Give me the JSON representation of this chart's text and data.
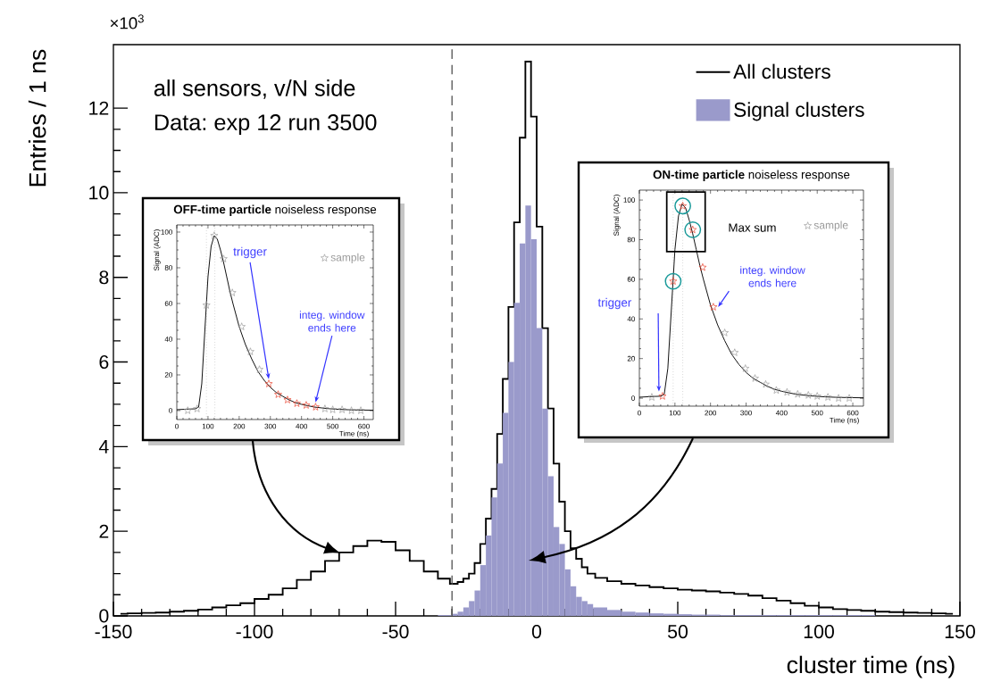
{
  "chart_data": [
    {
      "type": "histogram",
      "xlabel": "cluster time (ns)",
      "ylabel": "Entries / 1 ns",
      "xlim": [
        -150,
        150
      ],
      "ylim": [
        0,
        13.5
      ],
      "xticks": [
        -150,
        -100,
        -50,
        0,
        50,
        100,
        150
      ],
      "yticks": [
        0,
        2,
        4,
        6,
        8,
        10,
        12
      ],
      "legend": "top right",
      "annotations": [
        "×10$^{3}$",
        "all sensors, v/N side",
        "Data: exp 12 run 3500"
      ],
      "ref_lines": [
        {
          "axis": "x",
          "value": -30,
          "line_style": "dashed",
          "color": "#555555"
        }
      ],
      "bins": [
        -35,
        -30,
        -28,
        -26,
        -24,
        -22,
        -20,
        -18,
        -16,
        -14,
        -12,
        -10,
        -8,
        -6,
        -4,
        -2,
        0,
        2,
        4,
        6,
        8,
        10,
        12,
        14,
        16,
        18,
        20,
        25,
        30,
        35,
        40,
        45,
        50,
        55,
        60,
        65,
        70,
        75,
        80,
        85,
        90,
        95,
        100,
        105,
        110,
        115,
        120
      ],
      "series": [
        {
          "name": "All clusters",
          "type": "step",
          "color": "#000000",
          "x": [
            -147.5,
            -142.5,
            -137.5,
            -132.5,
            -127.5,
            -122.5,
            -117.5,
            -112.5,
            -107.5,
            -102.5,
            -97.5,
            -92.5,
            -87.5,
            -82.5,
            -77.5,
            -72.5,
            -67.5,
            -62.5,
            -57.5,
            -52.5,
            -47.5,
            -42.5,
            -37.5,
            -32.5,
            -29,
            -27,
            -25,
            -23,
            -21,
            -19,
            -17,
            -15,
            -13,
            -11,
            -9,
            -7,
            -5,
            -3,
            -1,
            1,
            3,
            5,
            7,
            9,
            11,
            13,
            15,
            17,
            19,
            22.5,
            27.5,
            32.5,
            37.5,
            42.5,
            47.5,
            52.5,
            57.5,
            62.5,
            67.5,
            72.5,
            77.5,
            82.5,
            87.5,
            92.5,
            97.5,
            102.5,
            107.5,
            112.5,
            117.5,
            122.5,
            127.5,
            132.5,
            137.5,
            142.5,
            147.5
          ],
          "values": [
            0.05,
            0.06,
            0.07,
            0.08,
            0.1,
            0.12,
            0.15,
            0.2,
            0.25,
            0.3,
            0.4,
            0.5,
            0.65,
            0.85,
            1.05,
            1.3,
            1.5,
            1.65,
            1.78,
            1.75,
            1.55,
            1.3,
            1.05,
            0.88,
            0.76,
            0.8,
            0.88,
            1.0,
            1.25,
            1.7,
            2.3,
            3.0,
            4.3,
            5.6,
            7.3,
            9.3,
            11.3,
            13.1,
            11.8,
            9.2,
            6.8,
            4.9,
            3.6,
            2.7,
            2.0,
            1.6,
            1.35,
            1.15,
            1.0,
            0.9,
            0.82,
            0.76,
            0.72,
            0.68,
            0.65,
            0.62,
            0.6,
            0.58,
            0.55,
            0.52,
            0.48,
            0.42,
            0.36,
            0.3,
            0.24,
            0.2,
            0.16,
            0.14,
            0.12,
            0.1,
            0.09,
            0.08,
            0.07,
            0.06,
            0.05
          ]
        },
        {
          "name": "Signal clusters",
          "color": "#9a9acb",
          "values": [
            0.02,
            0.05,
            0.1,
            0.2,
            0.35,
            0.6,
            1.2,
            1.9,
            2.8,
            3.6,
            4.8,
            6.0,
            7.4,
            8.8,
            9.7,
            8.9,
            6.8,
            4.9,
            3.3,
            2.1,
            1.7,
            1.1,
            0.7,
            0.45,
            0.35,
            0.28,
            0.2,
            0.14,
            0.1,
            0.08,
            0.06,
            0.05,
            0.04,
            0.03,
            0.03,
            0.02,
            0.02,
            0.02,
            0.02,
            0.02,
            0.02,
            0.02,
            0.02,
            0.02,
            0.02,
            0.02
          ]
        }
      ]
    },
    {
      "type": "line",
      "title": "**OFF-time particle** noiseless response",
      "xlabel": "Time (ns)",
      "ylabel": "Signal (ADC)",
      "xlim": [
        0,
        630
      ],
      "ylim": [
        -5,
        104
      ],
      "xticks": [
        0,
        100,
        200,
        300,
        400,
        500,
        600
      ],
      "yticks": [
        0,
        20,
        40,
        60,
        80,
        100
      ],
      "legend": "top right",
      "ref_lines": [
        {
          "axis": "x",
          "value": 95,
          "line_style": "dotted",
          "color": "#777777"
        },
        {
          "axis": "x",
          "value": 122,
          "line_style": "dotted",
          "color": "#777777"
        }
      ],
      "annotations": [
        "trigger",
        "integ. window ends here"
      ],
      "series": [
        {
          "type": "line",
          "color": "#000000",
          "x": [
            0,
            30,
            60,
            70,
            80,
            90,
            100,
            110,
            120,
            130,
            140,
            150,
            160,
            170,
            180,
            200,
            220,
            240,
            260,
            280,
            300,
            320,
            340,
            360,
            380,
            400,
            440,
            480,
            520,
            560,
            630
          ],
          "values": [
            0.5,
            0.8,
            1,
            2,
            15,
            45,
            75,
            92,
            98,
            96,
            90,
            83,
            75,
            67,
            60,
            47,
            37,
            29,
            22,
            17,
            13,
            10,
            8,
            6,
            4.5,
            3.5,
            2,
            1.2,
            0.7,
            0.4,
            0.2
          ]
        },
        {
          "name": "sample",
          "type": "scatter",
          "marker": "star",
          "color": "#999999",
          "x": [
            35,
            65,
            95,
            120,
            150,
            178,
            208,
            236,
            265,
            475,
            500,
            530,
            560,
            590
          ],
          "values": [
            0,
            1,
            59,
            98,
            85,
            66,
            47,
            33,
            23,
            1,
            0.5,
            0.5,
            0,
            0
          ]
        },
        {
          "type": "scatter",
          "marker": "star",
          "color": "#e8402a",
          "x": [
            295,
            325,
            355,
            385,
            415,
            445
          ],
          "values": [
            15,
            9,
            6,
            4,
            3,
            2
          ]
        }
      ]
    },
    {
      "type": "line",
      "title": "**ON-time particle** noiseless response",
      "xlabel": "Time (ns)",
      "ylabel": "Signal (ADC)",
      "xlim": [
        0,
        630
      ],
      "ylim": [
        -4,
        105
      ],
      "xticks": [
        0,
        100,
        200,
        300,
        400,
        500,
        600
      ],
      "yticks": [
        0,
        20,
        40,
        60,
        80,
        100
      ],
      "legend": "top right",
      "ref_lines": [
        {
          "axis": "x",
          "value": 95,
          "line_style": "dotted",
          "color": "#777777"
        },
        {
          "axis": "x",
          "value": 122,
          "line_style": "dotted",
          "color": "#777777"
        }
      ],
      "annotations": [
        "trigger",
        "integ. window ends here",
        "Max sum"
      ],
      "series": [
        {
          "type": "line",
          "color": "#000000",
          "x": [
            0,
            30,
            60,
            70,
            80,
            90,
            100,
            110,
            120,
            130,
            140,
            150,
            160,
            170,
            180,
            200,
            220,
            240,
            260,
            280,
            300,
            320,
            340,
            360,
            380,
            400,
            440,
            480,
            520,
            560,
            630
          ],
          "values": [
            0.5,
            0.8,
            1,
            2,
            15,
            45,
            75,
            92,
            98,
            96,
            90,
            83,
            75,
            67,
            60,
            47,
            37,
            29,
            22,
            17,
            13,
            10,
            8,
            6,
            4.5,
            3.5,
            2,
            1.2,
            0.7,
            0.4,
            0.2
          ]
        },
        {
          "name": "sample",
          "type": "scatter",
          "marker": "star",
          "color": "#999999",
          "x": [
            35,
            240,
            268,
            298,
            325,
            355,
            385,
            415,
            445,
            475,
            500,
            530,
            560,
            590
          ],
          "values": [
            0.5,
            33,
            23,
            15,
            10,
            7,
            4,
            3,
            2,
            1.5,
            1,
            0.5,
            0,
            0
          ]
        },
        {
          "type": "scatter",
          "marker": "circle",
          "color": "#1a9a9a",
          "x": [
            95,
            122,
            150
          ],
          "values": [
            59,
            97,
            85
          ]
        },
        {
          "type": "scatter",
          "marker": "star",
          "color": "#e8402a",
          "x": [
            65,
            95,
            122,
            150,
            178,
            208
          ],
          "values": [
            1,
            59,
            97,
            85,
            66,
            46
          ]
        }
      ]
    }
  ]
}
